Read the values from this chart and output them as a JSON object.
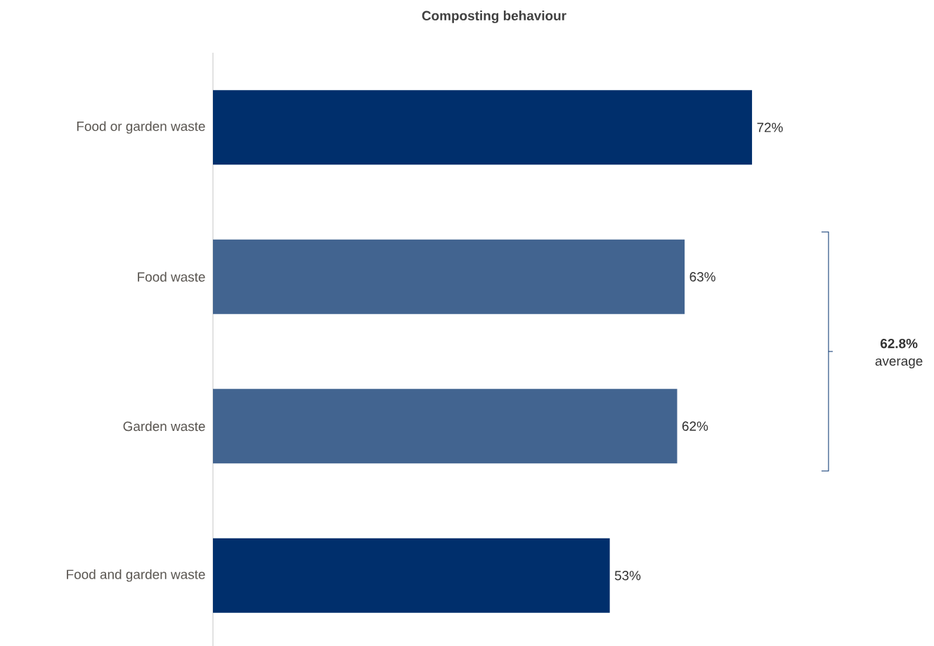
{
  "chart_data": {
    "type": "bar",
    "orientation": "horizontal",
    "title": "Composting behaviour",
    "categories": [
      "Food or garden waste",
      "Food waste",
      "Garden waste",
      "Food and garden waste"
    ],
    "values": [
      72,
      63,
      62,
      53
    ],
    "colors": [
      "#002f6c",
      "#426490",
      "#426490",
      "#002f6c"
    ],
    "value_labels": [
      "72%",
      "63%",
      "62%",
      "53%"
    ],
    "annotations": [
      "**62.8%** average"
    ]
  }
}
